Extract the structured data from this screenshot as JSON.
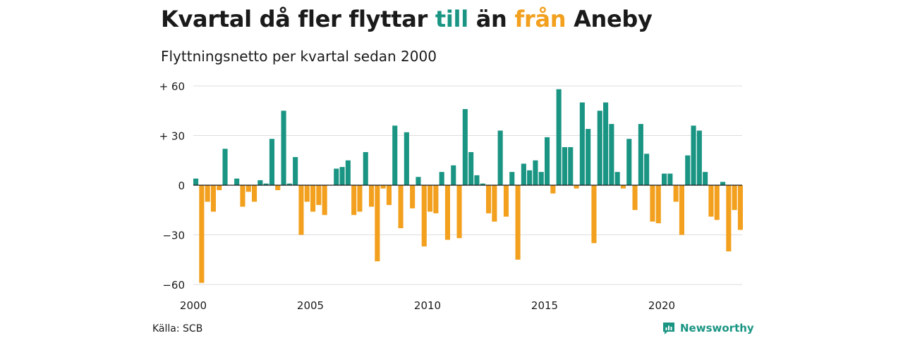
{
  "header": {
    "title_part1": "Kvartal då fler flyttar ",
    "title_till": "till",
    "title_part2": " än ",
    "title_fran": "från",
    "title_part3": " Aneby",
    "subtitle": "Flyttningsnetto per kvartal sedan 2000"
  },
  "footer": {
    "source": "Källa: SCB",
    "brand": "Newsworthy"
  },
  "colors": {
    "positive": "#1a9583",
    "negative": "#f2a01e",
    "grid": "#dddddd",
    "zero_line": "#1a1a1a",
    "text": "#1a1a1a"
  },
  "chart_data": {
    "type": "bar",
    "title": "Kvartal då fler flyttar till än från Aneby",
    "subtitle": "Flyttningsnetto per kvartal sedan 2000",
    "x_start_year": 2000,
    "periods_per_year": 4,
    "x_ticks": [
      {
        "value": 2000,
        "label": "2000"
      },
      {
        "value": 2005,
        "label": "2005"
      },
      {
        "value": 2010,
        "label": "2010"
      },
      {
        "value": 2015,
        "label": "2015"
      },
      {
        "value": 2020,
        "label": "2020"
      }
    ],
    "y_ticks": [
      {
        "value": 60,
        "label": "+ 60"
      },
      {
        "value": 30,
        "label": "+ 30"
      },
      {
        "value": 0,
        "label": "0"
      },
      {
        "value": -30,
        "label": "−30"
      },
      {
        "value": -60,
        "label": "−60"
      }
    ],
    "ylim": [
      -60,
      60
    ],
    "grid": true,
    "values": [
      4,
      -59,
      -10,
      -16,
      -3,
      22,
      0,
      4,
      -13,
      -4,
      -10,
      3,
      1,
      28,
      -3,
      45,
      1,
      17,
      -30,
      -10,
      -16,
      -12,
      -18,
      0,
      10,
      11,
      15,
      -18,
      -16,
      20,
      -13,
      -46,
      -2,
      -12,
      36,
      -26,
      32,
      -14,
      5,
      -37,
      -16,
      -17,
      8,
      -33,
      12,
      -32,
      46,
      20,
      6,
      1,
      -17,
      -22,
      33,
      -19,
      8,
      -45,
      13,
      9,
      15,
      8,
      29,
      -5,
      58,
      23,
      23,
      -2,
      50,
      34,
      -35,
      45,
      50,
      37,
      8,
      -2,
      28,
      -15,
      37,
      19,
      -22,
      -23,
      7,
      7,
      -10,
      -30,
      18,
      36,
      33,
      8,
      -19,
      -21,
      2,
      -40,
      -15,
      -27
    ]
  }
}
